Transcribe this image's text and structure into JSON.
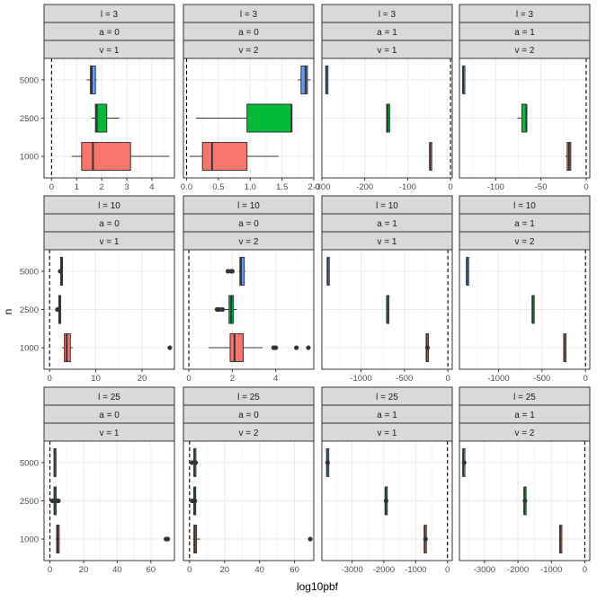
{
  "chart_data": {
    "type": "boxplot",
    "title": "",
    "xlabel": "log10pbf",
    "ylabel": "n",
    "y_categories": [
      "5000",
      "2500",
      "1000"
    ],
    "series_colors": {
      "5000": "#619CFF",
      "2500": "#00BA38",
      "1000": "#F8766D"
    },
    "reference_line": {
      "x": 0,
      "style": "dashed"
    },
    "grid": true,
    "legend": "none",
    "panels": [
      {
        "strips": [
          "l = 3",
          "a = 0",
          "v = 1"
        ],
        "xlim": [
          -0.3,
          4.9
        ],
        "xticks": [
          0,
          1,
          2,
          3,
          4
        ],
        "boxes": [
          {
            "n": "5000",
            "whisker_low": 1.4,
            "q1": 1.55,
            "median": 1.6,
            "q3": 1.75,
            "whisker_high": 1.8,
            "outliers": []
          },
          {
            "n": "2500",
            "whisker_low": 1.6,
            "q1": 1.75,
            "median": 1.8,
            "q3": 2.2,
            "whisker_high": 2.7,
            "outliers": []
          },
          {
            "n": "1000",
            "whisker_low": 0.8,
            "q1": 1.2,
            "median": 1.65,
            "q3": 3.15,
            "whisker_high": 4.7,
            "outliers": []
          }
        ]
      },
      {
        "strips": [
          "l = 3",
          "a = 0",
          "v = 2"
        ],
        "xlim": [
          -0.05,
          2.0
        ],
        "xticks": [
          0.0,
          0.5,
          1.0,
          1.5,
          2.0
        ],
        "ticklabels": [
          "0.0",
          "0.5",
          "1.0",
          "1.5",
          "2.0"
        ],
        "boxes": [
          {
            "n": "5000",
            "whisker_low": 1.75,
            "q1": 1.8,
            "median": 1.87,
            "q3": 1.9,
            "whisker_high": 1.95,
            "outliers": []
          },
          {
            "n": "2500",
            "whisker_low": 0.15,
            "q1": 0.95,
            "median": 1.65,
            "q3": 1.65,
            "whisker_high": 1.65,
            "outliers": []
          },
          {
            "n": "1000",
            "whisker_low": 0.05,
            "q1": 0.25,
            "median": 0.4,
            "q3": 0.95,
            "whisker_high": 1.45,
            "outliers": []
          }
        ]
      },
      {
        "strips": [
          "l = 3",
          "a = 1",
          "v = 1"
        ],
        "xlim": [
          -300,
          4
        ],
        "xticks": [
          -300,
          -200,
          -100,
          0
        ],
        "boxes": [
          {
            "n": "5000",
            "whisker_low": -290,
            "q1": -290,
            "median": -290,
            "q3": -290,
            "whisker_high": -290,
            "outliers": []
          },
          {
            "n": "2500",
            "whisker_low": -150,
            "q1": -149,
            "median": -147,
            "q3": -142,
            "whisker_high": -140,
            "outliers": []
          },
          {
            "n": "1000",
            "whisker_low": -48,
            "q1": -48,
            "median": -48,
            "q3": -48,
            "whisker_high": -48,
            "outliers": []
          }
        ]
      },
      {
        "strips": [
          "l = 3",
          "a = 1",
          "v = 2"
        ],
        "xlim": [
          -140,
          4
        ],
        "xticks": [
          -100,
          -50,
          0
        ],
        "boxes": [
          {
            "n": "5000",
            "whisker_low": -136,
            "q1": -136,
            "median": -136,
            "q3": -136,
            "whisker_high": -136,
            "outliers": []
          },
          {
            "n": "2500",
            "whisker_low": -76,
            "q1": -71,
            "median": -66,
            "q3": -66,
            "whisker_high": -66,
            "outliers": []
          },
          {
            "n": "1000",
            "whisker_low": -23,
            "q1": -21,
            "median": -19,
            "q3": -17,
            "whisker_high": -17,
            "outliers": []
          }
        ]
      },
      {
        "strips": [
          "l = 10",
          "a = 0",
          "v = 1"
        ],
        "xlim": [
          -1.2,
          27
        ],
        "xticks": [
          0,
          10,
          20
        ],
        "boxes": [
          {
            "n": "5000",
            "whisker_low": 2.4,
            "q1": 2.4,
            "median": 2.5,
            "q3": 2.6,
            "whisker_high": 2.6,
            "outliers": [
              2.3
            ]
          },
          {
            "n": "2500",
            "whisker_low": 1.9,
            "q1": 2.0,
            "median": 2.1,
            "q3": 2.2,
            "whisker_high": 2.2,
            "outliers": [
              1.7
            ]
          },
          {
            "n": "1000",
            "whisker_low": 2.7,
            "q1": 3.2,
            "median": 3.7,
            "q3": 4.5,
            "whisker_high": 5.0,
            "outliers": [
              26.0
            ]
          }
        ]
      },
      {
        "strips": [
          "l = 10",
          "a = 0",
          "v = 2"
        ],
        "xlim": [
          -0.25,
          5.75
        ],
        "xticks": [
          0,
          2,
          4
        ],
        "boxes": [
          {
            "n": "5000",
            "whisker_low": 2.3,
            "q1": 2.35,
            "median": 2.4,
            "q3": 2.55,
            "whisker_high": 2.6,
            "outliers": [
              1.8,
              1.95,
              2.0
            ]
          },
          {
            "n": "2500",
            "whisker_low": 1.65,
            "q1": 1.85,
            "median": 1.95,
            "q3": 2.05,
            "whisker_high": 2.2,
            "outliers": [
              1.3,
              1.4,
              1.55
            ]
          },
          {
            "n": "1000",
            "whisker_low": 0.9,
            "q1": 1.9,
            "median": 2.1,
            "q3": 2.5,
            "whisker_high": 3.4,
            "outliers": [
              3.9,
              4.0,
              4.95,
              5.5
            ]
          }
        ]
      },
      {
        "strips": [
          "l = 10",
          "a = 1",
          "v = 1"
        ],
        "xlim": [
          -1450,
          50
        ],
        "xticks": [
          -1000,
          -500,
          0
        ],
        "boxes": [
          {
            "n": "5000",
            "whisker_low": -1385,
            "q1": -1385,
            "median": -1385,
            "q3": -1385,
            "whisker_high": -1385,
            "outliers": []
          },
          {
            "n": "2500",
            "whisker_low": -700,
            "q1": -700,
            "median": -700,
            "q3": -700,
            "whisker_high": -700,
            "outliers": []
          },
          {
            "n": "1000",
            "whisker_low": -245,
            "q1": -245,
            "median": -245,
            "q3": -245,
            "whisker_high": -245,
            "outliers": [
              -235
            ]
          }
        ]
      },
      {
        "strips": [
          "l = 10",
          "a = 1",
          "v = 2"
        ],
        "xlim": [
          -1450,
          50
        ],
        "xticks": [
          -1000,
          -500,
          0
        ],
        "boxes": [
          {
            "n": "5000",
            "whisker_low": -1365,
            "q1": -1365,
            "median": -1365,
            "q3": -1365,
            "whisker_high": -1365,
            "outliers": []
          },
          {
            "n": "2500",
            "whisker_low": -610,
            "q1": -610,
            "median": -610,
            "q3": -610,
            "whisker_high": -610,
            "outliers": []
          },
          {
            "n": "1000",
            "whisker_low": -245,
            "q1": -245,
            "median": -245,
            "q3": -245,
            "whisker_high": -245,
            "outliers": []
          }
        ]
      },
      {
        "strips": [
          "l = 25",
          "a = 0",
          "v = 1"
        ],
        "xlim": [
          -3.5,
          74
        ],
        "xticks": [
          0,
          20,
          40,
          60
        ],
        "boxes": [
          {
            "n": "5000",
            "whisker_low": 2.5,
            "q1": 2.5,
            "median": 2.7,
            "q3": 2.8,
            "whisker_high": 2.8,
            "outliers": []
          },
          {
            "n": "2500",
            "whisker_low": 2.5,
            "q1": 2.6,
            "median": 2.7,
            "q3": 2.8,
            "whisker_high": 2.9,
            "outliers": [
              1.5,
              4.5,
              5.0
            ]
          },
          {
            "n": "1000",
            "whisker_low": 3.5,
            "q1": 4.0,
            "median": 4.5,
            "q3": 5.5,
            "whisker_high": 6.0,
            "outliers": [
              69.0,
              70.0
            ]
          }
        ]
      },
      {
        "strips": [
          "l = 25",
          "a = 0",
          "v = 2"
        ],
        "xlim": [
          -3.5,
          71
        ],
        "xticks": [
          0,
          20,
          40,
          60
        ],
        "boxes": [
          {
            "n": "5000",
            "whisker_low": 2.5,
            "q1": 2.6,
            "median": 2.7,
            "q3": 2.8,
            "whisker_high": 3.5,
            "outliers": [
              1.5,
              3.5
            ]
          },
          {
            "n": "2500",
            "whisker_low": 2.0,
            "q1": 2.5,
            "median": 2.7,
            "q3": 2.9,
            "whisker_high": 3.5,
            "outliers": [
              1.5,
              3.0
            ]
          },
          {
            "n": "1000",
            "whisker_low": 2.0,
            "q1": 2.5,
            "median": 3.0,
            "q3": 4.0,
            "whisker_high": 6.0,
            "outliers": [
              69.0
            ]
          }
        ]
      },
      {
        "strips": [
          "l = 25",
          "a = 1",
          "v = 1"
        ],
        "xlim": [
          -3950,
          150
        ],
        "xticks": [
          -4000,
          -3000,
          -2000,
          -1000,
          0
        ],
        "boxes": [
          {
            "n": "5000",
            "whisker_low": -3790,
            "q1": -3790,
            "median": -3790,
            "q3": -3790,
            "whisker_high": -3790,
            "outliers": [
              -3770
            ]
          },
          {
            "n": "2500",
            "whisker_low": -1950,
            "q1": -1950,
            "median": -1950,
            "q3": -1950,
            "whisker_high": -1950,
            "outliers": [
              -1930
            ]
          },
          {
            "n": "1000",
            "whisker_low": -720,
            "q1": -720,
            "median": -720,
            "q3": -720,
            "whisker_high": -720,
            "outliers": [
              -690
            ]
          }
        ]
      },
      {
        "strips": [
          "l = 25",
          "a = 1",
          "v = 2"
        ],
        "xlim": [
          -3750,
          150
        ],
        "xticks": [
          -3000,
          -2000,
          -1000,
          0
        ],
        "boxes": [
          {
            "n": "5000",
            "whisker_low": -3640,
            "q1": -3640,
            "median": -3640,
            "q3": -3640,
            "whisker_high": -3640,
            "outliers": [
              -3610
            ]
          },
          {
            "n": "2500",
            "whisker_low": -1810,
            "q1": -1810,
            "median": -1810,
            "q3": -1810,
            "whisker_high": -1810,
            "outliers": [
              -1790
            ]
          },
          {
            "n": "1000",
            "whisker_low": -740,
            "q1": -740,
            "median": -740,
            "q3": -740,
            "whisker_high": -740,
            "outliers": []
          }
        ]
      }
    ]
  }
}
